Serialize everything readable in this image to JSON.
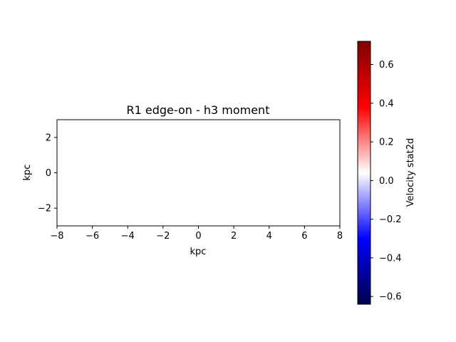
{
  "chart_data": {
    "type": "heatmap",
    "title": "R1 edge-on - h3 moment",
    "xlabel": "kpc",
    "ylabel": "kpc",
    "xlim": [
      -8,
      8
    ],
    "ylim": [
      -3,
      3
    ],
    "x_ticks": [
      -8,
      -6,
      -4,
      -2,
      0,
      2,
      4,
      6,
      8
    ],
    "y_ticks": [
      -2,
      0,
      2
    ],
    "x_tick_labels": [
      "−8",
      "−6",
      "−4",
      "−2",
      "0",
      "2",
      "4",
      "6",
      "8"
    ],
    "y_tick_labels": [
      "−2",
      "0",
      "2"
    ],
    "grid": false,
    "data_values": [],
    "colorbar": {
      "label": "Velocity stat2d",
      "colormap": "seismic",
      "range": [
        -0.64,
        0.72
      ],
      "ticks": [
        -0.6,
        -0.4,
        -0.2,
        0.0,
        0.2,
        0.4,
        0.6
      ],
      "tick_labels": [
        "−0.6",
        "−0.4",
        "−0.2",
        "0.0",
        "0.2",
        "0.4",
        "0.6"
      ],
      "colors": {
        "min": "#00004c",
        "low": "#0000ff",
        "mid": "#ffffff",
        "high": "#ff0000",
        "max": "#7f0000"
      }
    }
  }
}
